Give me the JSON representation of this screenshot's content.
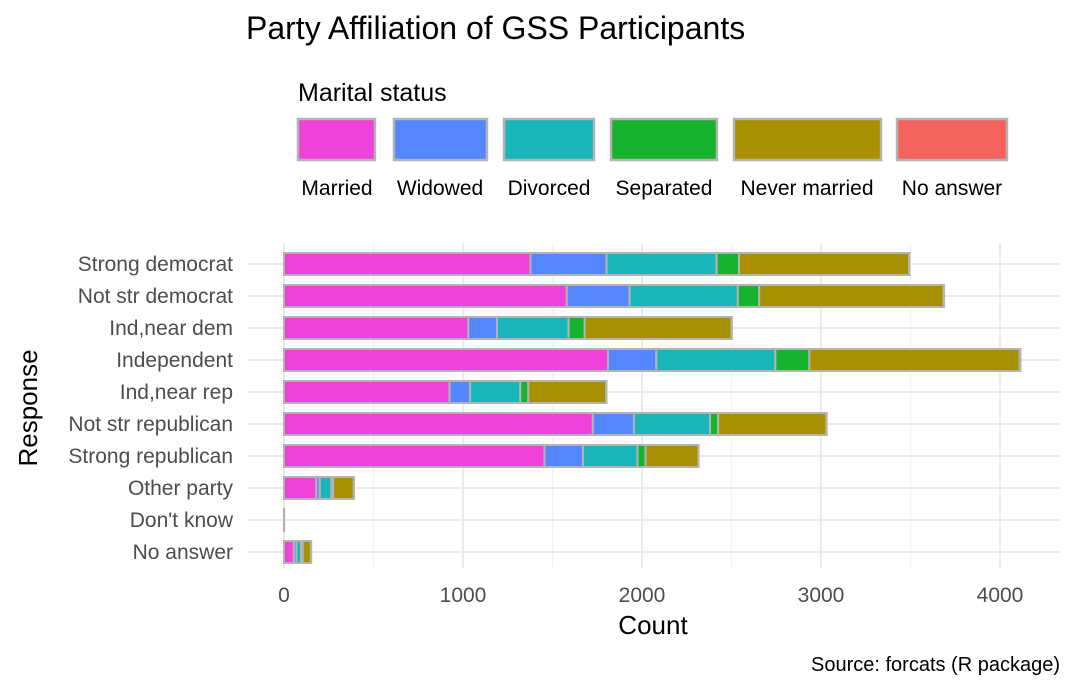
{
  "chart_data": {
    "type": "bar",
    "orientation": "horizontal",
    "stacked": true,
    "title": "Party Affiliation of GSS Participants",
    "xlabel": "Count",
    "ylabel": "Response",
    "caption": "Source: forcats (R package)",
    "xlim": [
      0,
      4300
    ],
    "xticks": [
      0,
      1000,
      2000,
      3000,
      4000
    ],
    "xtick_labels": [
      "0",
      "1000",
      "2000",
      "3000",
      "4000"
    ],
    "grid": true,
    "legend": {
      "title": "Marital status",
      "position": "top"
    },
    "categories": [
      "Strong democrat",
      "Not str democrat",
      "Ind,near dem",
      "Independent",
      "Ind,near rep",
      "Not str republican",
      "Strong republican",
      "Other party",
      "Don't know",
      "No answer"
    ],
    "series": [
      {
        "name": "Married",
        "color": "#EE42DB",
        "values": [
          1377,
          1580,
          1030,
          1810,
          925,
          1725,
          1455,
          180,
          1,
          55
        ]
      },
      {
        "name": "Widowed",
        "color": "#5487FF",
        "values": [
          425,
          350,
          160,
          270,
          115,
          230,
          215,
          20,
          0,
          15
        ]
      },
      {
        "name": "Divorced",
        "color": "#18B6B9",
        "values": [
          615,
          605,
          400,
          665,
          280,
          425,
          305,
          65,
          0,
          25
        ]
      },
      {
        "name": "Separated",
        "color": "#18B32E",
        "values": [
          125,
          120,
          90,
          190,
          45,
          45,
          45,
          10,
          0,
          10
        ]
      },
      {
        "name": "Never married",
        "color": "#A99000",
        "values": [
          950,
          1030,
          820,
          1175,
          435,
          605,
          295,
          115,
          0,
          45
        ]
      },
      {
        "name": "No answer",
        "color": "#F4625E",
        "values": [
          2,
          3,
          2,
          4,
          1,
          2,
          1,
          1,
          0,
          2
        ]
      }
    ]
  }
}
